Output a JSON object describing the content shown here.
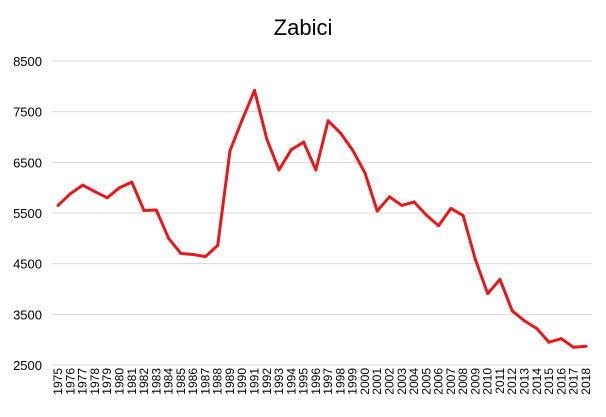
{
  "chart_data": {
    "type": "line",
    "title": "Zabici",
    "xlabel": "",
    "ylabel": "",
    "ylim": [
      2500,
      8500
    ],
    "yticks": [
      2500,
      3500,
      4500,
      5500,
      6500,
      7500,
      8500
    ],
    "grid": true,
    "legend": "none",
    "x": [
      "1975",
      "1976",
      "1977",
      "1978",
      "1979",
      "1980",
      "1981",
      "1982",
      "1983",
      "1984",
      "1985",
      "1986",
      "1987",
      "1988",
      "1989",
      "1990",
      "1991",
      "1992",
      "1993",
      "1994",
      "1995",
      "1996",
      "1997",
      "1998",
      "1999",
      "2000",
      "2001",
      "2002",
      "2003",
      "2004",
      "2005",
      "2006",
      "2007",
      "2008",
      "2009",
      "2010",
      "2011",
      "2012",
      "2013",
      "2014",
      "2015",
      "2016",
      "2017",
      "2018"
    ],
    "series": [
      {
        "color": "#e31a1c",
        "values": [
          5650,
          5880,
          6050,
          5920,
          5800,
          6000,
          6110,
          5550,
          5560,
          5000,
          4700,
          4680,
          4640,
          4860,
          6730,
          7340,
          7920,
          6960,
          6350,
          6750,
          6900,
          6350,
          7320,
          7080,
          6740,
          6290,
          5540,
          5820,
          5650,
          5720,
          5460,
          5250,
          5590,
          5450,
          4580,
          3910,
          4190,
          3570,
          3370,
          3220,
          2950,
          3020,
          2850,
          2870
        ]
      }
    ]
  }
}
